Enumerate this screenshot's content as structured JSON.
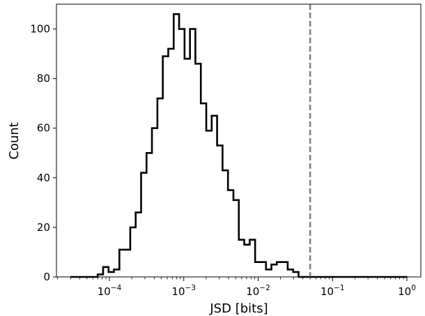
{
  "chart_data": {
    "type": "histogram",
    "xlabel": "JSD [bits]",
    "ylabel": "Count",
    "x_scale": "log",
    "xlim": [
      0.00015,
      1.5
    ],
    "ylim": [
      0,
      110
    ],
    "x_ticks": [
      {
        "value": 0.0001,
        "base": "10",
        "exp": "−4"
      },
      {
        "value": 0.001,
        "base": "10",
        "exp": "−3"
      },
      {
        "value": 0.01,
        "base": "10",
        "exp": "−2"
      },
      {
        "value": 0.1,
        "base": "10",
        "exp": "−1"
      },
      {
        "value": 1,
        "base": "10",
        "exp": "0"
      }
    ],
    "y_ticks": [
      "0",
      "20",
      "40",
      "60",
      "80",
      "100"
    ],
    "bin_edges": [
      3e-05,
      3.55e-05,
      4.2e-05,
      4.97e-05,
      5.88e-05,
      6.96e-05,
      8.23e-05,
      9.74e-05,
      0.0001152,
      0.0001363,
      0.0001612,
      0.0001907,
      0.0002256,
      0.0002669,
      0.0003158,
      0.0003736,
      0.000442,
      0.0005229,
      0.0006186,
      0.0007318,
      0.0008658,
      0.0010243,
      0.0012118,
      0.0014336,
      0.001696,
      0.0020065,
      0.0023738,
      0.0028083,
      0.0033224,
      0.0039306,
      0.0046501,
      0.0055013,
      0.0065083,
      0.0076997,
      0.0091091,
      0.0107765,
      0.0127491,
      0.0150828,
      0.0178437,
      0.0211099,
      0.024974,
      0.0295455,
      0.0349538,
      0.041352,
      0.0489214,
      0.0578764,
      0.0684706,
      0.0810041,
      0.0958318,
      0.113374,
      0.134127,
      0.158678,
      0.187724,
      0.222087,
      0.262739,
      0.310833,
      0.367731,
      0.435043,
      0.514678,
      0.608889,
      0.720345,
      0.852203,
      1.00819
    ],
    "counts": [
      0,
      0,
      0,
      0,
      0,
      1,
      4,
      2,
      3,
      11,
      11,
      20,
      26,
      42,
      50,
      60,
      72,
      89,
      92,
      106,
      100,
      88,
      100,
      86,
      70,
      59,
      65,
      53,
      43,
      35,
      31,
      15,
      13,
      15,
      6,
      6,
      3,
      5,
      6,
      6,
      3,
      2,
      0,
      0,
      0,
      0,
      0,
      0,
      0,
      0,
      0,
      0,
      0,
      0,
      0,
      0,
      0,
      0,
      0,
      0,
      0,
      0
    ],
    "threshold_line": {
      "x": 0.05,
      "style": "dashed",
      "color": "#808080"
    },
    "colors": {
      "histogram": "#000000",
      "threshold": "#808080",
      "axes": "#000000"
    },
    "grid": false
  }
}
